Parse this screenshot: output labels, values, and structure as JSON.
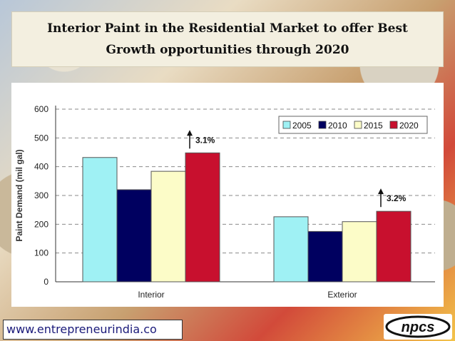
{
  "slide": {
    "title_line1": "Interior Paint in the Residential Market to offer Best",
    "title_line2": "Growth opportunities through 2020",
    "website": "www.entrepreneurindia.co",
    "logo_text": "npcs"
  },
  "chart_data": {
    "type": "bar",
    "ylabel": "Paint Demand (mil gal)",
    "xlabel": "",
    "ylim": [
      0,
      600
    ],
    "yticks": [
      0,
      100,
      200,
      300,
      400,
      500,
      600
    ],
    "grid": true,
    "legend_position": "top-right",
    "categories": [
      "Interior",
      "Exterior"
    ],
    "series": [
      {
        "name": "2005",
        "values": [
          432,
          226
        ],
        "color": "#9ff1f4"
      },
      {
        "name": "2010",
        "values": [
          320,
          175
        ],
        "color": "#000060"
      },
      {
        "name": "2015",
        "values": [
          384,
          209
        ],
        "color": "#fcfcc8"
      },
      {
        "name": "2020",
        "values": [
          448,
          245
        ],
        "color": "#c8102e"
      }
    ],
    "annotations": [
      {
        "category": "Interior",
        "text": "3.1%"
      },
      {
        "category": "Exterior",
        "text": "3.2%"
      }
    ]
  }
}
